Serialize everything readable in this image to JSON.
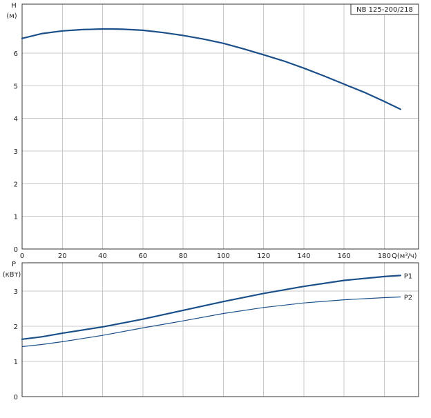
{
  "chart_data": [
    {
      "type": "line",
      "id": "head",
      "title": "NB 125-200/218",
      "ylabel": "H",
      "ylabel_unit": "(м)",
      "xlabel": "Q(м³/ч)",
      "xlim": [
        0,
        197
      ],
      "ylim": [
        0,
        7.5
      ],
      "xticks": [
        0,
        20,
        40,
        60,
        80,
        100,
        120,
        140,
        160,
        180
      ],
      "yticks": [
        0,
        1,
        2,
        3,
        4,
        5,
        6
      ],
      "grid": true,
      "series": [
        {
          "x": [
            0,
            10,
            20,
            30,
            40,
            45,
            50,
            60,
            70,
            80,
            90,
            100,
            110,
            120,
            130,
            140,
            150,
            160,
            170,
            180,
            188
          ],
          "y": [
            6.45,
            6.6,
            6.68,
            6.72,
            6.74,
            6.74,
            6.73,
            6.7,
            6.63,
            6.54,
            6.43,
            6.3,
            6.13,
            5.95,
            5.76,
            5.54,
            5.3,
            5.05,
            4.8,
            4.52,
            4.28
          ],
          "color": "#1a4f8a"
        }
      ]
    },
    {
      "type": "line",
      "id": "power",
      "ylabel": "P",
      "ylabel_unit": "(кВт)",
      "xlim": [
        0,
        197
      ],
      "ylim": [
        0,
        3.8
      ],
      "xticks": [
        0,
        20,
        40,
        60,
        80,
        100,
        120,
        140,
        160,
        180
      ],
      "yticks": [
        0,
        1,
        2,
        3
      ],
      "grid": true,
      "series": [
        {
          "name": "P1",
          "x": [
            0,
            10,
            20,
            40,
            60,
            80,
            100,
            120,
            140,
            160,
            180,
            188
          ],
          "y": [
            1.63,
            1.7,
            1.8,
            1.98,
            2.2,
            2.45,
            2.7,
            2.93,
            3.13,
            3.3,
            3.41,
            3.44
          ],
          "color": "#1a4f8a"
        },
        {
          "name": "P2",
          "x": [
            0,
            10,
            20,
            40,
            60,
            80,
            100,
            120,
            140,
            160,
            180,
            188
          ],
          "y": [
            1.42,
            1.48,
            1.56,
            1.74,
            1.95,
            2.15,
            2.36,
            2.53,
            2.66,
            2.75,
            2.81,
            2.83
          ],
          "color": "#1a4f8a"
        }
      ]
    }
  ]
}
